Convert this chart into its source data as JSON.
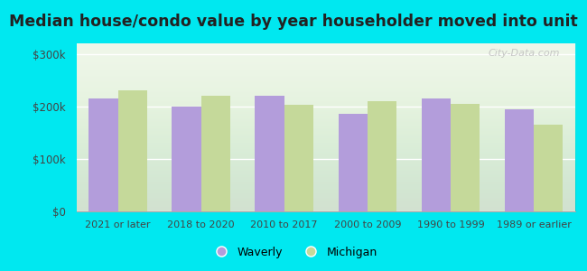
{
  "categories": [
    "2021 or later",
    "2018 to 2020",
    "2010 to 2017",
    "2000 to 2009",
    "1990 to 1999",
    "1989 or earlier"
  ],
  "waverly": [
    215000,
    200000,
    220000,
    185000,
    215000,
    195000
  ],
  "michigan": [
    230000,
    220000,
    203000,
    210000,
    205000,
    165000
  ],
  "waverly_color": "#b39ddb",
  "michigan_color": "#c5d99a",
  "title": "Median house/condo value by year householder moved into unit",
  "title_fontsize": 12.5,
  "ylabel_ticks": [
    0,
    100000,
    200000,
    300000
  ],
  "ylabel_labels": [
    "$0",
    "$100k",
    "$200k",
    "$300k"
  ],
  "ylim": [
    0,
    320000
  ],
  "background_color": "#00e8f0",
  "plot_bg_color": "#eef6e8",
  "legend_waverly": "Waverly",
  "legend_michigan": "Michigan",
  "bar_width": 0.35,
  "watermark_text": "City-Data.com"
}
